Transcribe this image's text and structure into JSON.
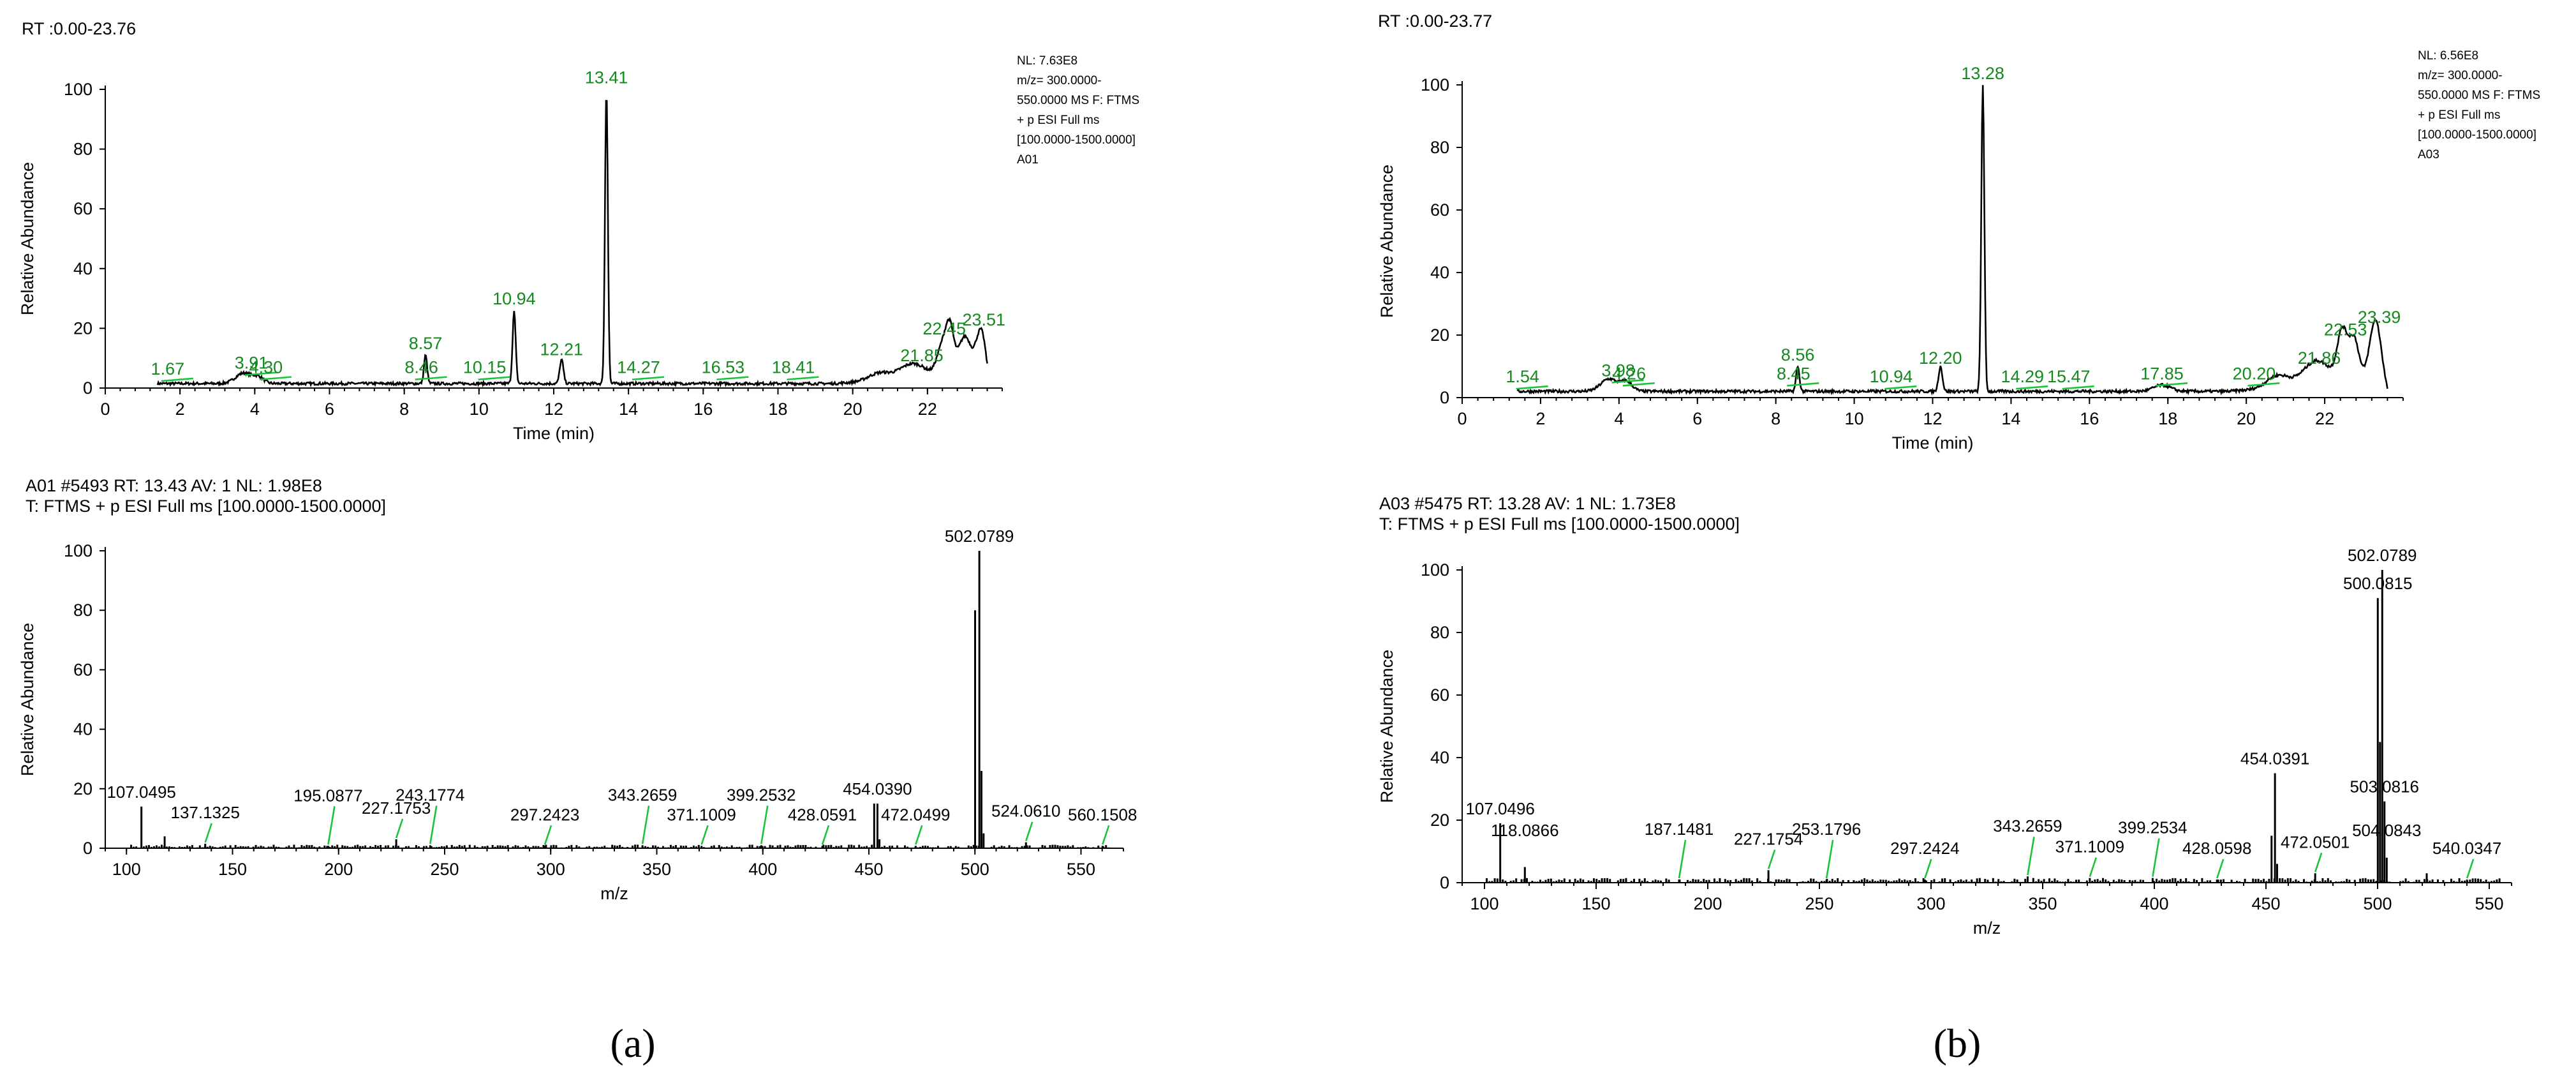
{
  "chart_data": [
    {
      "type": "line",
      "panel": "a",
      "range_text": "RT :0.00-23.76",
      "info_lines": [
        "NL: 7.63E8",
        "m/z= 300.0000-",
        "550.0000 MS  F: FTMS",
        "+ p ESI Full ms",
        "[100.0000-1500.0000]",
        "A01"
      ],
      "xlabel": "Time (min)",
      "ylabel": "Relative Abundance",
      "xlim": [
        0,
        24
      ],
      "ylim": [
        0,
        100
      ],
      "xticks": [
        0,
        2,
        4,
        6,
        8,
        10,
        12,
        14,
        16,
        18,
        20,
        22
      ],
      "yticks": [
        0,
        20,
        40,
        60,
        80,
        100
      ],
      "x_range": [
        1.4,
        23.6
      ],
      "baseline": 1.5,
      "peaks": [
        {
          "rt": 3.7,
          "h": 3.5,
          "w": 0.3
        },
        {
          "rt": 4.1,
          "h": 2.0,
          "w": 0.2
        },
        {
          "rt": 8.57,
          "h": 9.5,
          "w": 0.06
        },
        {
          "rt": 10.94,
          "h": 24,
          "w": 0.06
        },
        {
          "rt": 12.21,
          "h": 8,
          "w": 0.07
        },
        {
          "rt": 13.41,
          "h": 98,
          "w": 0.055
        },
        {
          "rt": 20.7,
          "h": 2.5,
          "w": 0.4
        },
        {
          "rt": 21.6,
          "h": 5,
          "w": 0.5
        },
        {
          "rt": 22.4,
          "h": 10,
          "w": 0.2
        },
        {
          "rt": 22.6,
          "h": 14,
          "w": 0.15
        },
        {
          "rt": 23.0,
          "h": 13,
          "w": 0.25
        },
        {
          "rt": 23.45,
          "h": 17,
          "w": 0.18
        }
      ],
      "labels": [
        {
          "text": "1.67",
          "x": 1.67,
          "y": 1.5
        },
        {
          "text": "3.91",
          "x": 3.91,
          "y": 3.5
        },
        {
          "text": "4.30",
          "x": 4.3,
          "y": 2
        },
        {
          "text": "8.46",
          "x": 8.46,
          "y": 2
        },
        {
          "text": "8.57",
          "x": 8.57,
          "y": 10
        },
        {
          "text": "10.15",
          "x": 10.15,
          "y": 2
        },
        {
          "text": "10.94",
          "x": 10.94,
          "y": 25
        },
        {
          "text": "12.21",
          "x": 12.21,
          "y": 8
        },
        {
          "text": "13.41",
          "x": 13.41,
          "y": 99
        },
        {
          "text": "14.27",
          "x": 14.27,
          "y": 2
        },
        {
          "text": "16.53",
          "x": 16.53,
          "y": 2
        },
        {
          "text": "18.41",
          "x": 18.41,
          "y": 2
        },
        {
          "text": "21.85",
          "x": 21.85,
          "y": 6
        },
        {
          "text": "22.45",
          "x": 22.45,
          "y": 15
        },
        {
          "text": "23.51",
          "x": 23.51,
          "y": 18
        }
      ]
    },
    {
      "type": "bar",
      "panel": "a",
      "header_lines": [
        "A01 #5493 RT: 13.43 AV: 1 NL: 1.98E8",
        "T: FTMS + p ESI Full ms [100.0000-1500.0000]"
      ],
      "xlabel": "m/z",
      "ylabel": "Relative Abundance",
      "xlim": [
        90,
        570
      ],
      "ylim": [
        0,
        100
      ],
      "xticks": [
        100,
        150,
        200,
        250,
        300,
        350,
        400,
        450,
        500,
        550
      ],
      "yticks": [
        0,
        20,
        40,
        60,
        80,
        100
      ],
      "noise_max": 1.2,
      "bars": [
        {
          "mz": 107.0495,
          "h": 14,
          "label": "107.0495"
        },
        {
          "mz": 118.0,
          "h": 4
        },
        {
          "mz": 137.1325,
          "h": 1.5,
          "label": "137.1325"
        },
        {
          "mz": 195.0877,
          "h": 0.8,
          "label": "195.0877"
        },
        {
          "mz": 227.1753,
          "h": 3,
          "label": "227.1753"
        },
        {
          "mz": 243.1774,
          "h": 1,
          "label": "243.1774"
        },
        {
          "mz": 297.2423,
          "h": 0.8,
          "label": "297.2423"
        },
        {
          "mz": 343.2659,
          "h": 1,
          "label": "343.2659"
        },
        {
          "mz": 371.1009,
          "h": 0.8,
          "label": "371.1009"
        },
        {
          "mz": 399.2532,
          "h": 1,
          "label": "399.2532"
        },
        {
          "mz": 428.0591,
          "h": 0.8,
          "label": "428.0591"
        },
        {
          "mz": 452.5,
          "h": 15
        },
        {
          "mz": 454.039,
          "h": 15,
          "label": "454.0390"
        },
        {
          "mz": 455.0,
          "h": 3
        },
        {
          "mz": 472.0499,
          "h": 0.8,
          "label": "472.0499"
        },
        {
          "mz": 500.0815,
          "h": 80
        },
        {
          "mz": 502.0789,
          "h": 100,
          "label": "502.0789"
        },
        {
          "mz": 503.08,
          "h": 26
        },
        {
          "mz": 504.08,
          "h": 5
        },
        {
          "mz": 524.061,
          "h": 2,
          "label": "524.0610"
        },
        {
          "mz": 560.1508,
          "h": 0.8,
          "label": "560.1508"
        }
      ]
    },
    {
      "type": "line",
      "panel": "b",
      "range_text": "RT :0.00-23.77",
      "info_lines": [
        "NL: 6.56E8",
        "m/z= 300.0000-",
        "550.0000 MS  F: FTMS",
        "+ p ESI Full ms",
        "[100.0000-1500.0000]",
        "A03"
      ],
      "xlabel": "Time (min)",
      "ylabel": "Relative Abundance",
      "xlim": [
        0,
        24
      ],
      "ylim": [
        0,
        100
      ],
      "xticks": [
        0,
        2,
        4,
        6,
        8,
        10,
        12,
        14,
        16,
        18,
        20,
        22
      ],
      "yticks": [
        0,
        20,
        40,
        60,
        80,
        100
      ],
      "x_range": [
        1.4,
        23.6
      ],
      "baseline": 2,
      "peaks": [
        {
          "rt": 3.75,
          "h": 4,
          "w": 0.3
        },
        {
          "rt": 4.2,
          "h": 3,
          "w": 0.2
        },
        {
          "rt": 8.56,
          "h": 8,
          "w": 0.06
        },
        {
          "rt": 12.2,
          "h": 8,
          "w": 0.07
        },
        {
          "rt": 13.28,
          "h": 98,
          "w": 0.055
        },
        {
          "rt": 17.85,
          "h": 2,
          "w": 0.3
        },
        {
          "rt": 20.8,
          "h": 4,
          "w": 0.4
        },
        {
          "rt": 21.8,
          "h": 8,
          "w": 0.5
        },
        {
          "rt": 22.45,
          "h": 16,
          "w": 0.18
        },
        {
          "rt": 22.75,
          "h": 14,
          "w": 0.18
        },
        {
          "rt": 23.3,
          "h": 20,
          "w": 0.22
        }
      ],
      "labels": [
        {
          "text": "1.54",
          "x": 1.54,
          "y": 2
        },
        {
          "text": "3.98",
          "x": 3.98,
          "y": 4
        },
        {
          "text": "4.26",
          "x": 4.26,
          "y": 3
        },
        {
          "text": "8.45",
          "x": 8.45,
          "y": 3
        },
        {
          "text": "8.56",
          "x": 8.56,
          "y": 9
        },
        {
          "text": "10.94",
          "x": 10.94,
          "y": 2
        },
        {
          "text": "12.20",
          "x": 12.2,
          "y": 8
        },
        {
          "text": "13.28",
          "x": 13.28,
          "y": 99
        },
        {
          "text": "14.29",
          "x": 14.29,
          "y": 2
        },
        {
          "text": "15.47",
          "x": 15.47,
          "y": 2
        },
        {
          "text": "17.85",
          "x": 17.85,
          "y": 3
        },
        {
          "text": "20.20",
          "x": 20.2,
          "y": 3
        },
        {
          "text": "21.86",
          "x": 21.86,
          "y": 8
        },
        {
          "text": "22.53",
          "x": 22.53,
          "y": 17
        },
        {
          "text": "23.39",
          "x": 23.39,
          "y": 21
        }
      ]
    },
    {
      "type": "bar",
      "panel": "b",
      "header_lines": [
        "A03 #5475 RT: 13.28 AV: 1 NL: 1.73E8",
        "T: FTMS + p ESI Full ms [100.0000-1500.0000]"
      ],
      "xlabel": "m/z",
      "ylabel": "Relative Abundance",
      "xlim": [
        90,
        560
      ],
      "ylim": [
        0,
        100
      ],
      "xticks": [
        100,
        150,
        200,
        250,
        300,
        350,
        400,
        450,
        500,
        550
      ],
      "yticks": [
        0,
        20,
        40,
        60,
        80,
        100
      ],
      "noise_max": 1.5,
      "bars": [
        {
          "mz": 107.0496,
          "h": 19,
          "label": "107.0496"
        },
        {
          "mz": 118.0866,
          "h": 5,
          "label": "118.0866"
        },
        {
          "mz": 187.1481,
          "h": 1,
          "label": "187.1481"
        },
        {
          "mz": 227.1754,
          "h": 4,
          "label": "227.1754"
        },
        {
          "mz": 253.1796,
          "h": 1,
          "label": "253.1796"
        },
        {
          "mz": 297.2424,
          "h": 1,
          "label": "297.2424"
        },
        {
          "mz": 343.2659,
          "h": 2,
          "label": "343.2659"
        },
        {
          "mz": 371.1009,
          "h": 1.5,
          "label": "371.1009"
        },
        {
          "mz": 399.2534,
          "h": 1.5,
          "label": "399.2534"
        },
        {
          "mz": 428.0598,
          "h": 1,
          "label": "428.0598"
        },
        {
          "mz": 452.5,
          "h": 15
        },
        {
          "mz": 454.0391,
          "h": 35,
          "label": "454.0391"
        },
        {
          "mz": 455.0,
          "h": 6
        },
        {
          "mz": 472.0501,
          "h": 3,
          "label": "472.0501"
        },
        {
          "mz": 500.0815,
          "h": 91,
          "label": "500.0815"
        },
        {
          "mz": 501.08,
          "h": 45
        },
        {
          "mz": 502.0789,
          "h": 100,
          "label": "502.0789"
        },
        {
          "mz": 503.0816,
          "h": 26,
          "label": "503.0816"
        },
        {
          "mz": 504.0843,
          "h": 8,
          "label": "504.0843"
        },
        {
          "mz": 522.0,
          "h": 3
        },
        {
          "mz": 540.0347,
          "h": 1,
          "label": "540.0347"
        }
      ]
    }
  ],
  "captions": {
    "a": "(a)",
    "b": "(b)"
  }
}
